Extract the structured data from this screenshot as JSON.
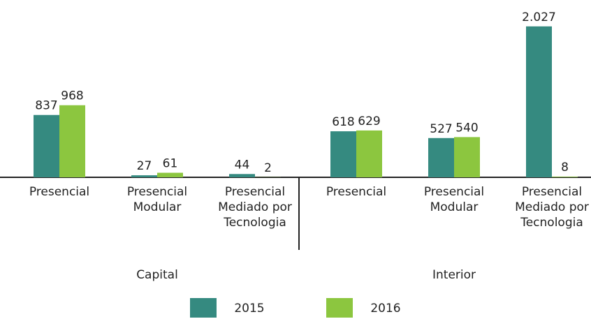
{
  "chart_data": {
    "type": "bar",
    "categories": [
      "Presencial",
      "Presencial Modular",
      "Presencial Mediado por Tecnologia",
      "Presencial",
      "Presencial Modular",
      "Presencial Mediado por Tecnologia"
    ],
    "groups": [
      "Capital",
      "Interior"
    ],
    "series": [
      {
        "name": "2015",
        "color": "#358a80",
        "values": [
          837,
          27,
          44,
          618,
          527,
          2027
        ],
        "value_labels": [
          "837",
          "27",
          "44",
          "618",
          "527",
          "2.027"
        ]
      },
      {
        "name": "2016",
        "color": "#8cc63f",
        "values": [
          968,
          61,
          2,
          629,
          540,
          8
        ]
      }
    ],
    "ylim": [
      0,
      2100
    ]
  }
}
